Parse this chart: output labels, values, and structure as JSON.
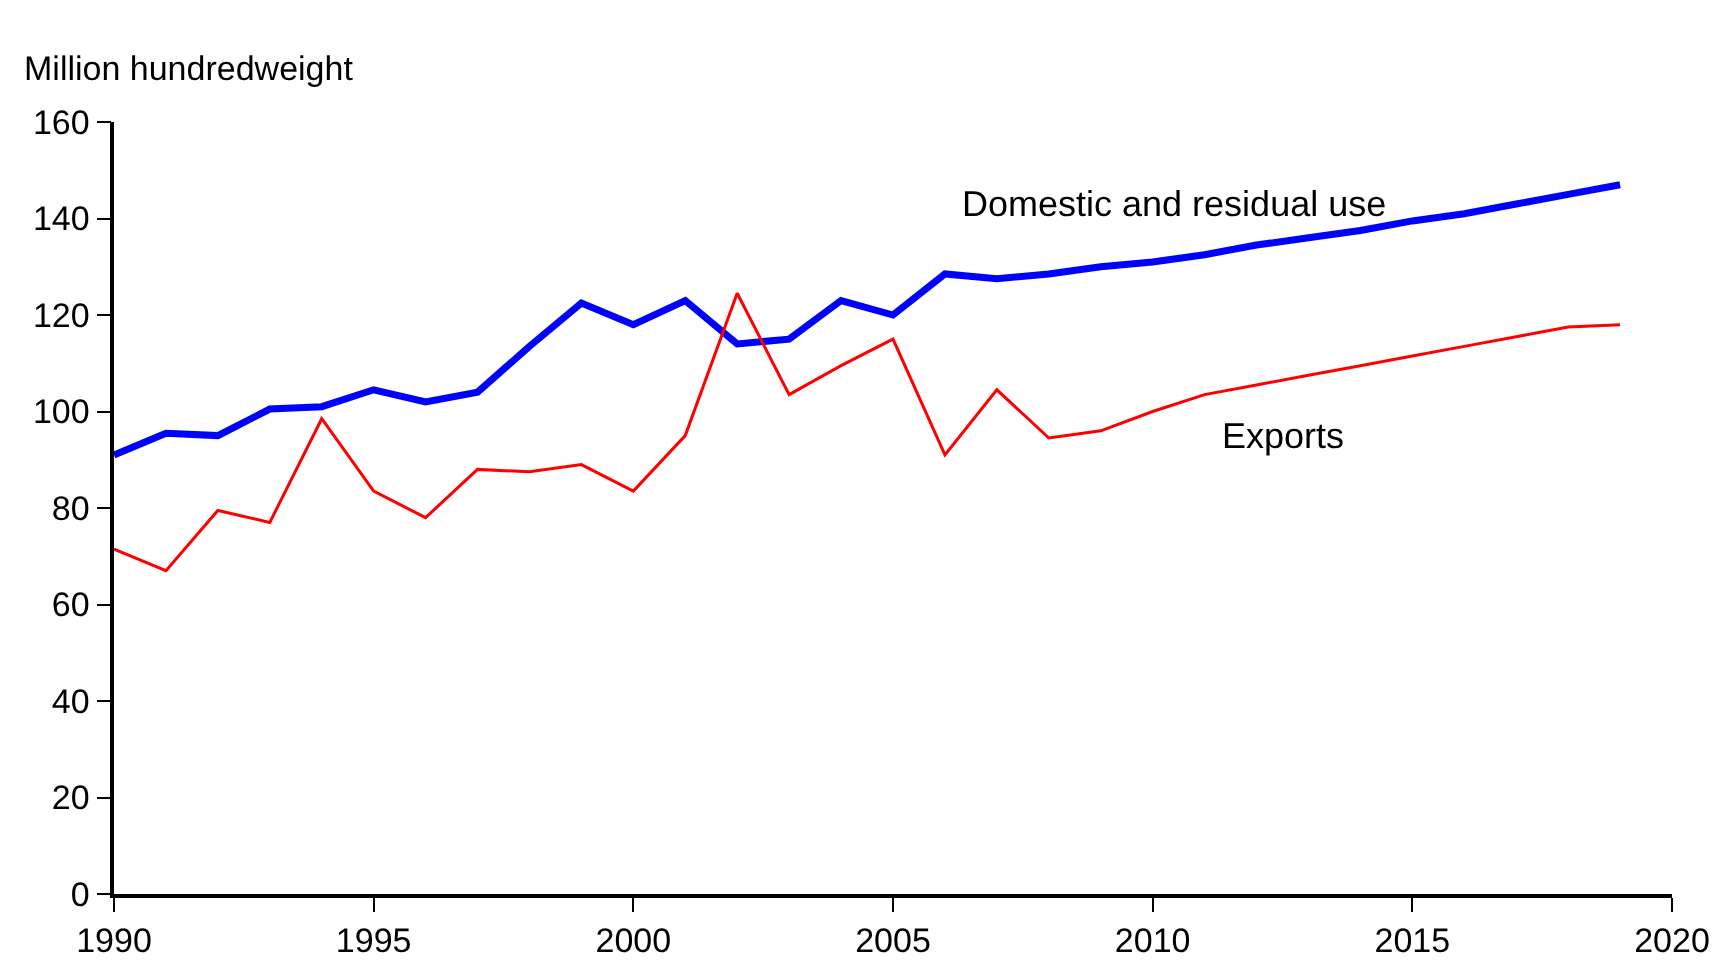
{
  "chart_data": {
    "type": "line",
    "ylabel": "Million hundredweight",
    "x": [
      1990,
      1991,
      1992,
      1993,
      1994,
      1995,
      1996,
      1997,
      1998,
      1999,
      2000,
      2001,
      2002,
      2003,
      2004,
      2005,
      2006,
      2007,
      2008,
      2009,
      2010,
      2011,
      2012,
      2013,
      2014,
      2015,
      2016,
      2017,
      2018,
      2019
    ],
    "series": [
      {
        "name": "Domestic and residual use",
        "color": "#0000ff",
        "values": [
          91,
          95.5,
          95,
          100.5,
          101,
          104.5,
          102,
          104,
          113.5,
          122.5,
          118,
          123,
          114,
          115,
          123,
          120,
          128.5,
          127.5,
          128.5,
          130,
          131,
          132.5,
          134.5,
          136,
          137.5,
          139.5,
          141,
          143,
          145,
          147
        ]
      },
      {
        "name": "Exports",
        "color": "#ff0000",
        "values": [
          71.5,
          67,
          79.5,
          77,
          98.5,
          83.5,
          78,
          88,
          87.5,
          89,
          83.5,
          95,
          124.5,
          103.5,
          109.5,
          115,
          91,
          104.5,
          94.5,
          96,
          100,
          103.5,
          105.5,
          107.5,
          109.5,
          111.5,
          113.5,
          115.5,
          117.5,
          118
        ]
      }
    ],
    "xlim": [
      1990,
      2020
    ],
    "xticks": [
      1990,
      1995,
      2000,
      2005,
      2010,
      2015,
      2020
    ],
    "ylim": [
      0,
      160
    ],
    "yticks": [
      0,
      20,
      40,
      60,
      80,
      100,
      120,
      140,
      160
    ],
    "grid": false,
    "legend": false,
    "marker": "none",
    "line_style": "solid"
  }
}
